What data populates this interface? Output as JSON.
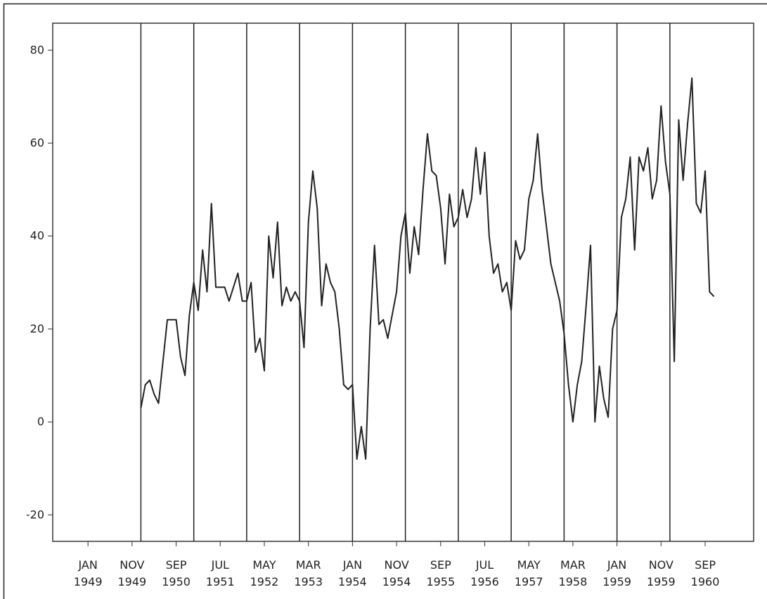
{
  "chart_data": {
    "type": "line",
    "x": [
      "1950-01",
      "1950-02",
      "1950-03",
      "1950-04",
      "1950-05",
      "1950-06",
      "1950-07",
      "1950-08",
      "1950-09",
      "1950-10",
      "1950-11",
      "1950-12",
      "1951-01",
      "1951-02",
      "1951-03",
      "1951-04",
      "1951-05",
      "1951-06",
      "1951-07",
      "1951-08",
      "1951-09",
      "1951-10",
      "1951-11",
      "1951-12",
      "1952-01",
      "1952-02",
      "1952-03",
      "1952-04",
      "1952-05",
      "1952-06",
      "1952-07",
      "1952-08",
      "1952-09",
      "1952-10",
      "1952-11",
      "1952-12",
      "1953-01",
      "1953-02",
      "1953-03",
      "1953-04",
      "1953-05",
      "1953-06",
      "1953-07",
      "1953-08",
      "1953-09",
      "1953-10",
      "1953-11",
      "1953-12",
      "1954-01",
      "1954-02",
      "1954-03",
      "1954-04",
      "1954-05",
      "1954-06",
      "1954-07",
      "1954-08",
      "1954-09",
      "1954-10",
      "1954-11",
      "1954-12",
      "1955-01",
      "1955-02",
      "1955-03",
      "1955-04",
      "1955-05",
      "1955-06",
      "1955-07",
      "1955-08",
      "1955-09",
      "1955-10",
      "1955-11",
      "1955-12",
      "1956-01",
      "1956-02",
      "1956-03",
      "1956-04",
      "1956-05",
      "1956-06",
      "1956-07",
      "1956-08",
      "1956-09",
      "1956-10",
      "1956-11",
      "1956-12",
      "1957-01",
      "1957-02",
      "1957-03",
      "1957-04",
      "1957-05",
      "1957-06",
      "1957-07",
      "1957-08",
      "1957-09",
      "1957-10",
      "1957-11",
      "1957-12",
      "1958-01",
      "1958-02",
      "1958-03",
      "1958-04",
      "1958-05",
      "1958-06",
      "1958-07",
      "1958-08",
      "1958-09",
      "1958-10",
      "1958-11",
      "1958-12",
      "1959-01",
      "1959-02",
      "1959-03",
      "1959-04",
      "1959-05",
      "1959-06",
      "1959-07",
      "1959-08",
      "1959-09",
      "1959-10",
      "1959-11",
      "1959-12",
      "1960-01",
      "1960-02",
      "1960-03",
      "1960-04",
      "1960-05",
      "1960-06",
      "1960-07",
      "1960-08",
      "1960-09",
      "1960-10",
      "1960-11"
    ],
    "values": [
      3,
      8,
      9,
      6,
      4,
      13,
      22,
      22,
      22,
      14,
      10,
      23,
      30,
      24,
      37,
      28,
      47,
      29,
      29,
      29,
      26,
      29,
      32,
      26,
      26,
      30,
      15,
      18,
      11,
      40,
      31,
      43,
      25,
      29,
      26,
      28,
      26,
      16,
      43,
      54,
      46,
      25,
      34,
      30,
      28,
      20,
      8,
      7,
      8,
      -8,
      -1,
      -8,
      20,
      38,
      21,
      22,
      18,
      23,
      28,
      40,
      45,
      32,
      42,
      36,
      50,
      62,
      54,
      53,
      46,
      34,
      49,
      42,
      44,
      50,
      44,
      48,
      59,
      49,
      58,
      40,
      32,
      34,
      28,
      30,
      24,
      39,
      35,
      37,
      48,
      52,
      62,
      50,
      42,
      34,
      30,
      26,
      19,
      8,
      0,
      8,
      13,
      25,
      38,
      0,
      12,
      5,
      1,
      20,
      24,
      44,
      48,
      57,
      37,
      57,
      54,
      59,
      48,
      52,
      68,
      56,
      49,
      13,
      65,
      52,
      64,
      74,
      47,
      45,
      54,
      28,
      27
    ],
    "color": "#222222",
    "xlim": [
      "1948-05",
      "1961-08"
    ],
    "xticks": [
      {
        "value": "1949-01",
        "label": "JAN 1949"
      },
      {
        "value": "1949-11",
        "label": "NOV 1949"
      },
      {
        "value": "1950-09",
        "label": "SEP 1950"
      },
      {
        "value": "1951-07",
        "label": "JUL 1951"
      },
      {
        "value": "1952-05",
        "label": "MAY 1952"
      },
      {
        "value": "1953-03",
        "label": "MAR 1953"
      },
      {
        "value": "1954-01",
        "label": "JAN 1954"
      },
      {
        "value": "1954-11",
        "label": "NOV 1954"
      },
      {
        "value": "1955-09",
        "label": "SEP 1955"
      },
      {
        "value": "1956-07",
        "label": "JUL 1956"
      },
      {
        "value": "1957-05",
        "label": "MAY 1957"
      },
      {
        "value": "1958-03",
        "label": "MAR 1958"
      },
      {
        "value": "1959-01",
        "label": "JAN 1959"
      },
      {
        "value": "1959-11",
        "label": "NOV 1959"
      },
      {
        "value": "1960-09",
        "label": "SEP 1960"
      }
    ],
    "ylim": [
      -25.7,
      85.8
    ],
    "yticks": [
      -20,
      0,
      20,
      40,
      60,
      80
    ],
    "reference_lines_x": [
      "1950-01",
      "1951-01",
      "1952-01",
      "1953-01",
      "1954-01",
      "1955-01",
      "1956-01",
      "1957-01",
      "1958-01",
      "1959-01",
      "1960-01"
    ]
  }
}
